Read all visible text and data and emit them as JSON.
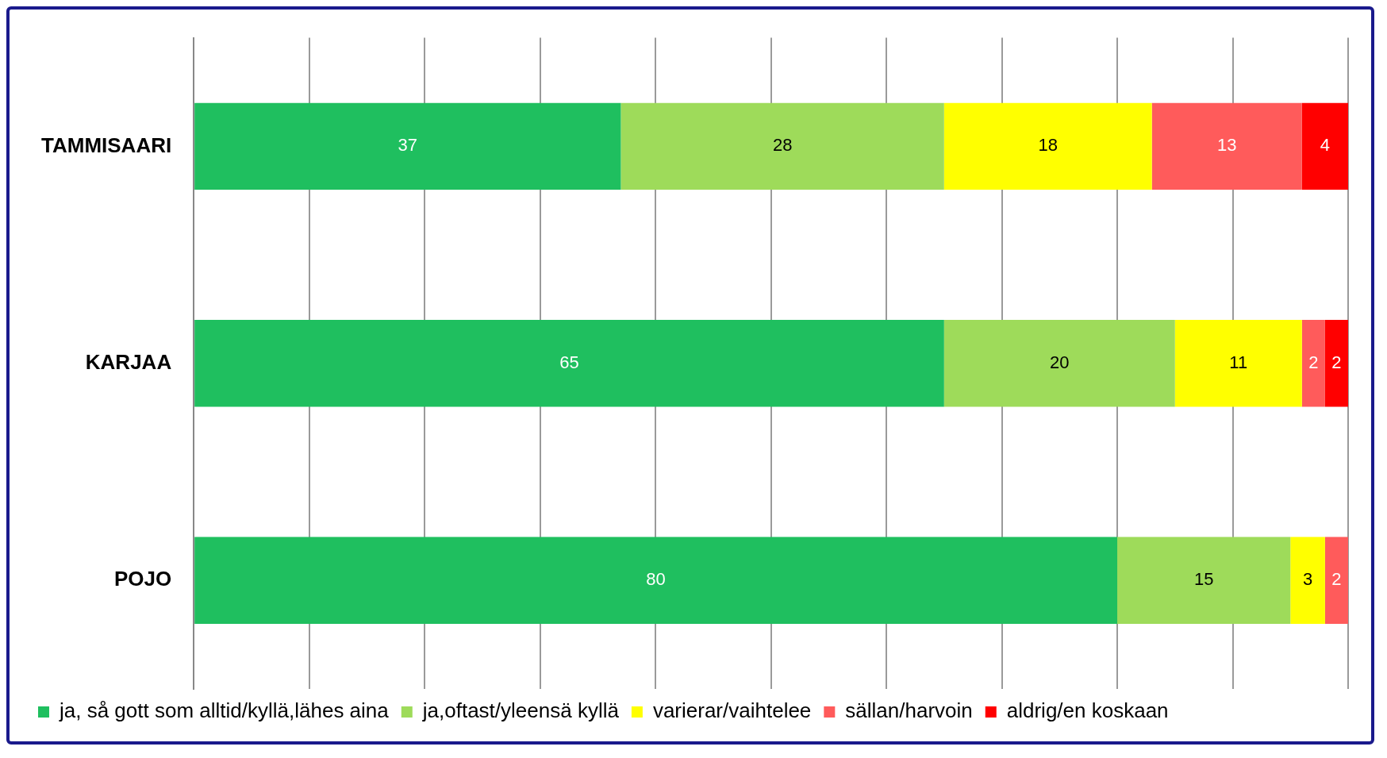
{
  "chart_data": {
    "type": "bar",
    "orientation": "horizontal",
    "stacked": true,
    "categories": [
      "TAMMISAARI",
      "KARJAA",
      "POJO"
    ],
    "series": [
      {
        "name": "ja, så gott som alltid/kyllä,lähes aina",
        "color": "#1fbf5f",
        "values": [
          37,
          65,
          80
        ]
      },
      {
        "name": "ja,oftast/yleensä kyllä",
        "color": "#9edb5a",
        "values": [
          28,
          20,
          15
        ]
      },
      {
        "name": "varierar/vaihtelee",
        "color": "#ffff00",
        "values": [
          18,
          11,
          3
        ]
      },
      {
        "name": "sällan/harvoin",
        "color": "#ff5b5b",
        "values": [
          13,
          2,
          2
        ]
      },
      {
        "name": "aldrig/en koskaan",
        "color": "#ff0000",
        "values": [
          4,
          2,
          null
        ]
      }
    ],
    "xlim": [
      0,
      100
    ],
    "xticks": [
      {
        "value": 0,
        "label": null
      },
      {
        "value": 10,
        "label": null
      },
      {
        "value": 20,
        "label": null
      },
      {
        "value": 30,
        "label": null
      },
      {
        "value": 40,
        "label": null
      },
      {
        "value": 50,
        "label": null
      },
      {
        "value": 60,
        "label": null
      },
      {
        "value": 70,
        "label": null
      },
      {
        "value": 80,
        "label": null
      },
      {
        "value": 90,
        "label": null
      },
      {
        "value": 100,
        "label": null
      }
    ],
    "tick_labels": "y",
    "grid": "x",
    "legend": "bottom",
    "data_labels": true
  }
}
